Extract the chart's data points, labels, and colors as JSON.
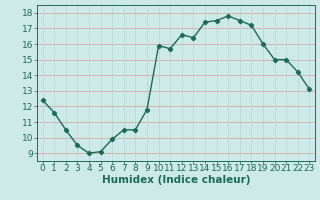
{
  "x": [
    0,
    1,
    2,
    3,
    4,
    5,
    6,
    7,
    8,
    9,
    10,
    11,
    12,
    13,
    14,
    15,
    16,
    17,
    18,
    19,
    20,
    21,
    22,
    23
  ],
  "y": [
    12.4,
    11.6,
    10.5,
    9.5,
    9.0,
    9.1,
    9.9,
    10.5,
    10.5,
    11.8,
    15.9,
    15.7,
    16.6,
    16.4,
    17.4,
    17.5,
    17.8,
    17.5,
    17.2,
    16.0,
    15.0,
    15.0,
    14.2,
    13.1
  ],
  "line_color": "#1a6b5a",
  "marker": "D",
  "markersize": 2.2,
  "linewidth": 1.0,
  "background_color": "#ceeae8",
  "grid_color_v": "#b8d8d6",
  "grid_color_h": "#d4a8a8",
  "xlabel": "Humidex (Indice chaleur)",
  "xlabel_fontsize": 7.5,
  "xlim": [
    -0.5,
    23.5
  ],
  "ylim": [
    8.5,
    18.5
  ],
  "yticks": [
    9,
    10,
    11,
    12,
    13,
    14,
    15,
    16,
    17,
    18
  ],
  "xticks": [
    0,
    1,
    2,
    3,
    4,
    5,
    6,
    7,
    8,
    9,
    10,
    11,
    12,
    13,
    14,
    15,
    16,
    17,
    18,
    19,
    20,
    21,
    22,
    23
  ],
  "tick_fontsize": 6.5,
  "fig_width": 3.2,
  "fig_height": 2.0,
  "dpi": 100
}
